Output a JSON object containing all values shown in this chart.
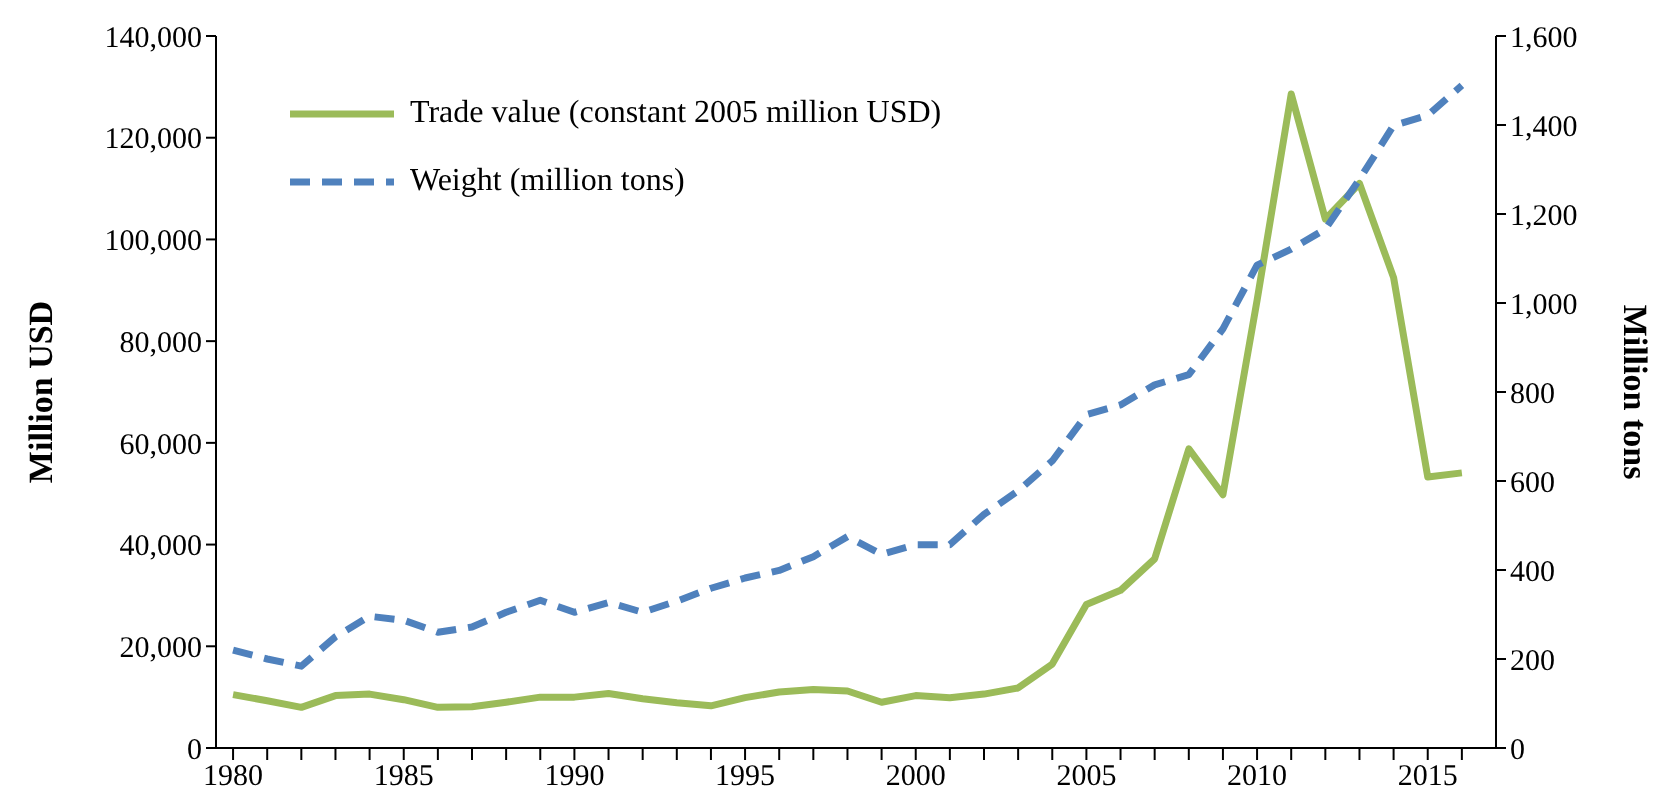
{
  "chart_data": {
    "type": "line",
    "ylabel": "Million USD",
    "y2label": "Million tons",
    "x": [
      1980,
      1981,
      1982,
      1983,
      1984,
      1985,
      1986,
      1987,
      1988,
      1989,
      1990,
      1991,
      1992,
      1993,
      1994,
      1995,
      1996,
      1997,
      1998,
      1999,
      2000,
      2001,
      2002,
      2003,
      2004,
      2005,
      2006,
      2007,
      2008,
      2009,
      2010,
      2011,
      2012,
      2013,
      2014,
      2015,
      2016
    ],
    "series": [
      {
        "name": "Trade value (constant 2005 million USD)",
        "color": "#9bbb59",
        "line_style": "solid",
        "values": [
          10500,
          9300,
          8000,
          10300,
          10600,
          9500,
          8000,
          8100,
          9000,
          10000,
          10000,
          10700,
          9700,
          8900,
          8300,
          9900,
          11000,
          11500,
          11200,
          9000,
          10300,
          9900,
          10600,
          11800,
          16500,
          28200,
          31000,
          37200,
          58800,
          49800,
          88000,
          128600,
          104000,
          111000,
          92500,
          53300,
          54100
        ]
      },
      {
        "name": "Weight (million tons)",
        "color": "#4f81bd",
        "line_style": "dashed",
        "axis": "y2",
        "values": [
          220,
          200,
          184,
          250,
          296,
          287,
          260,
          272,
          305,
          332,
          305,
          327,
          305,
          330,
          359,
          382,
          399,
          430,
          475,
          435,
          457,
          457,
          525,
          578,
          645,
          749,
          771,
          816,
          839,
          942,
          1085,
          1121,
          1166,
          1278,
          1399,
          1422,
          1489
        ]
      }
    ],
    "xlim": [
      1979.5,
      2017
    ],
    "xticks": [
      1980,
      {
        "value": 1981,
        "label": null
      },
      {
        "value": 1982,
        "label": null
      },
      {
        "value": 1983,
        "label": null
      },
      {
        "value": 1984,
        "label": null
      },
      1985,
      {
        "value": 1986,
        "label": null
      },
      {
        "value": 1987,
        "label": null
      },
      {
        "value": 1988,
        "label": null
      },
      {
        "value": 1989,
        "label": null
      },
      1990,
      {
        "value": 1991,
        "label": null
      },
      {
        "value": 1992,
        "label": null
      },
      {
        "value": 1993,
        "label": null
      },
      {
        "value": 1994,
        "label": null
      },
      1995,
      {
        "value": 1996,
        "label": null
      },
      {
        "value": 1997,
        "label": null
      },
      {
        "value": 1998,
        "label": null
      },
      {
        "value": 1999,
        "label": null
      },
      2000,
      {
        "value": 2001,
        "label": null
      },
      {
        "value": 2002,
        "label": null
      },
      {
        "value": 2003,
        "label": null
      },
      {
        "value": 2004,
        "label": null
      },
      2005,
      {
        "value": 2006,
        "label": null
      },
      {
        "value": 2007,
        "label": null
      },
      {
        "value": 2008,
        "label": null
      },
      {
        "value": 2009,
        "label": null
      },
      2010,
      {
        "value": 2011,
        "label": null
      },
      {
        "value": 2012,
        "label": null
      },
      {
        "value": 2013,
        "label": null
      },
      {
        "value": 2014,
        "label": null
      },
      2015,
      {
        "value": 2016,
        "label": null
      }
    ],
    "ylim": [
      0,
      140000
    ],
    "yticks": [
      0,
      {
        "value": 20000,
        "label": "20,000"
      },
      {
        "value": 40000,
        "label": "40,000"
      },
      {
        "value": 60000,
        "label": "60,000"
      },
      {
        "value": 80000,
        "label": "80,000"
      },
      {
        "value": 100000,
        "label": "100,000"
      },
      {
        "value": 120000,
        "label": "120,000"
      },
      {
        "value": 140000,
        "label": "140,000"
      }
    ],
    "y2lim": [
      0,
      1600
    ],
    "y2ticks": [
      0,
      200,
      400,
      600,
      800,
      {
        "value": 1000,
        "label": "1,000"
      },
      {
        "value": 1200,
        "label": "1,200"
      },
      {
        "value": 1400,
        "label": "1,400"
      },
      {
        "value": 1600,
        "label": "1,600"
      }
    ],
    "grid": false,
    "legend": "top left",
    "marker": "none"
  }
}
